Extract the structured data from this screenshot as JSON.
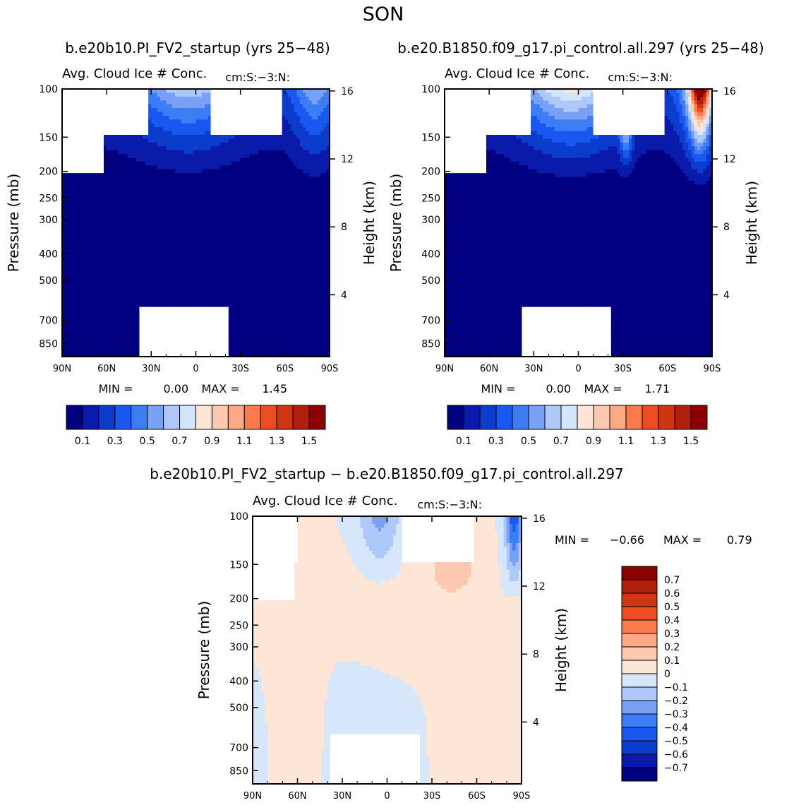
{
  "page": {
    "season": "SON",
    "diff_title": "b.e20b10.PI_FV2_startup − b.e20.B1850.f09_g17.pi_control.all.297"
  },
  "colors": {
    "abs_palette": [
      "#000080",
      "#0a1aab",
      "#0b3ccc",
      "#1858f0",
      "#3c7cf5",
      "#78a0f5",
      "#aec8fa",
      "#d4e4fb",
      "#fde6d6",
      "#fcc9b0",
      "#fba884",
      "#fb7a4b",
      "#ec4c22",
      "#ce3612",
      "#b21e0c",
      "#8b0000"
    ],
    "diff_palette": [
      "#000080",
      "#0a1aab",
      "#0b3ccc",
      "#1858f0",
      "#3c7cf5",
      "#78a0f5",
      "#aec8fa",
      "#d6e6fb",
      "#fde6d6",
      "#fcc9b0",
      "#fba884",
      "#fb7a4b",
      "#ec4c22",
      "#ce3612",
      "#b21e0c",
      "#8b0000"
    ],
    "missing": "#ffffff"
  },
  "chart_data": [
    {
      "type": "heatmap",
      "panel": "top-left",
      "title": "b.e20b10.PI_FV2_startup (yrs 25−48)",
      "subtitle": "Avg. Cloud Ice # Conc.",
      "units": "cm:S:−3:N:",
      "xlabel": "",
      "ylabel": "Pressure (mb)",
      "y2label": "Height (km)",
      "x_ticks": [
        "90N",
        "60N",
        "30N",
        "0",
        "30S",
        "60S",
        "90S"
      ],
      "y_ticks": [
        100,
        150,
        200,
        250,
        300,
        400,
        500,
        700,
        850
      ],
      "y2_ticks": [
        16,
        12,
        8,
        4
      ],
      "min_label": "MIN =",
      "min_value": "0.00",
      "max_label": "MAX =",
      "max_value": "1.45",
      "colorbar_labels": [
        "0.1",
        "0.3",
        "0.5",
        "0.7",
        "0.9",
        "1.1",
        "1.3",
        "1.5"
      ],
      "colorbar_levels": [
        0.1,
        0.2,
        0.3,
        0.4,
        0.5,
        0.6,
        0.7,
        0.8,
        0.9,
        1.0,
        1.1,
        1.2,
        1.3,
        1.4,
        1.5
      ],
      "field": "ice_concentration"
    },
    {
      "type": "heatmap",
      "panel": "top-right",
      "title": "b.e20.B1850.f09_g17.pi_control.all.297 (yrs 25−48)",
      "subtitle": "Avg. Cloud Ice # Conc.",
      "units": "cm:S:−3:N:",
      "xlabel": "",
      "ylabel": "Pressure (mb)",
      "y2label": "Height (km)",
      "x_ticks": [
        "90N",
        "60N",
        "30N",
        "0",
        "30S",
        "60S",
        "90S"
      ],
      "y_ticks": [
        100,
        150,
        200,
        250,
        300,
        400,
        500,
        700,
        850
      ],
      "y2_ticks": [
        16,
        12,
        8,
        4
      ],
      "min_label": "MIN =",
      "min_value": "0.00",
      "max_label": "MAX =",
      "max_value": "1.71",
      "colorbar_labels": [
        "0.1",
        "0.3",
        "0.5",
        "0.7",
        "0.9",
        "1.1",
        "1.3",
        "1.5"
      ],
      "colorbar_levels": [
        0.1,
        0.2,
        0.3,
        0.4,
        0.5,
        0.6,
        0.7,
        0.8,
        0.9,
        1.0,
        1.1,
        1.2,
        1.3,
        1.4,
        1.5
      ],
      "field": "ice_concentration"
    },
    {
      "type": "heatmap",
      "panel": "bottom",
      "title": "",
      "subtitle": "Avg. Cloud Ice # Conc.",
      "units": "cm:S:−3:N:",
      "xlabel": "",
      "ylabel": "Pressure (mb)",
      "y2label": "Height (km)",
      "x_ticks": [
        "90N",
        "60N",
        "30N",
        "0",
        "30S",
        "60S",
        "90S"
      ],
      "y_ticks": [
        100,
        150,
        200,
        250,
        300,
        400,
        500,
        700,
        850
      ],
      "y2_ticks": [
        16,
        12,
        8,
        4
      ],
      "min_label": "MIN =",
      "min_value": "−0.66",
      "max_label": "MAX =",
      "max_value": "0.79",
      "colorbar_labels": [
        "0.7",
        "0.6",
        "0.5",
        "0.4",
        "0.3",
        "0.2",
        "0.1",
        "0",
        "−0.1",
        "−0.2",
        "−0.3",
        "−0.4",
        "−0.5",
        "−0.6",
        "−0.7"
      ],
      "colorbar_levels": [
        -0.7,
        -0.6,
        -0.5,
        -0.4,
        -0.3,
        -0.2,
        -0.1,
        0,
        0.1,
        0.2,
        0.3,
        0.4,
        0.5,
        0.6,
        0.7
      ],
      "field": "difference"
    }
  ]
}
